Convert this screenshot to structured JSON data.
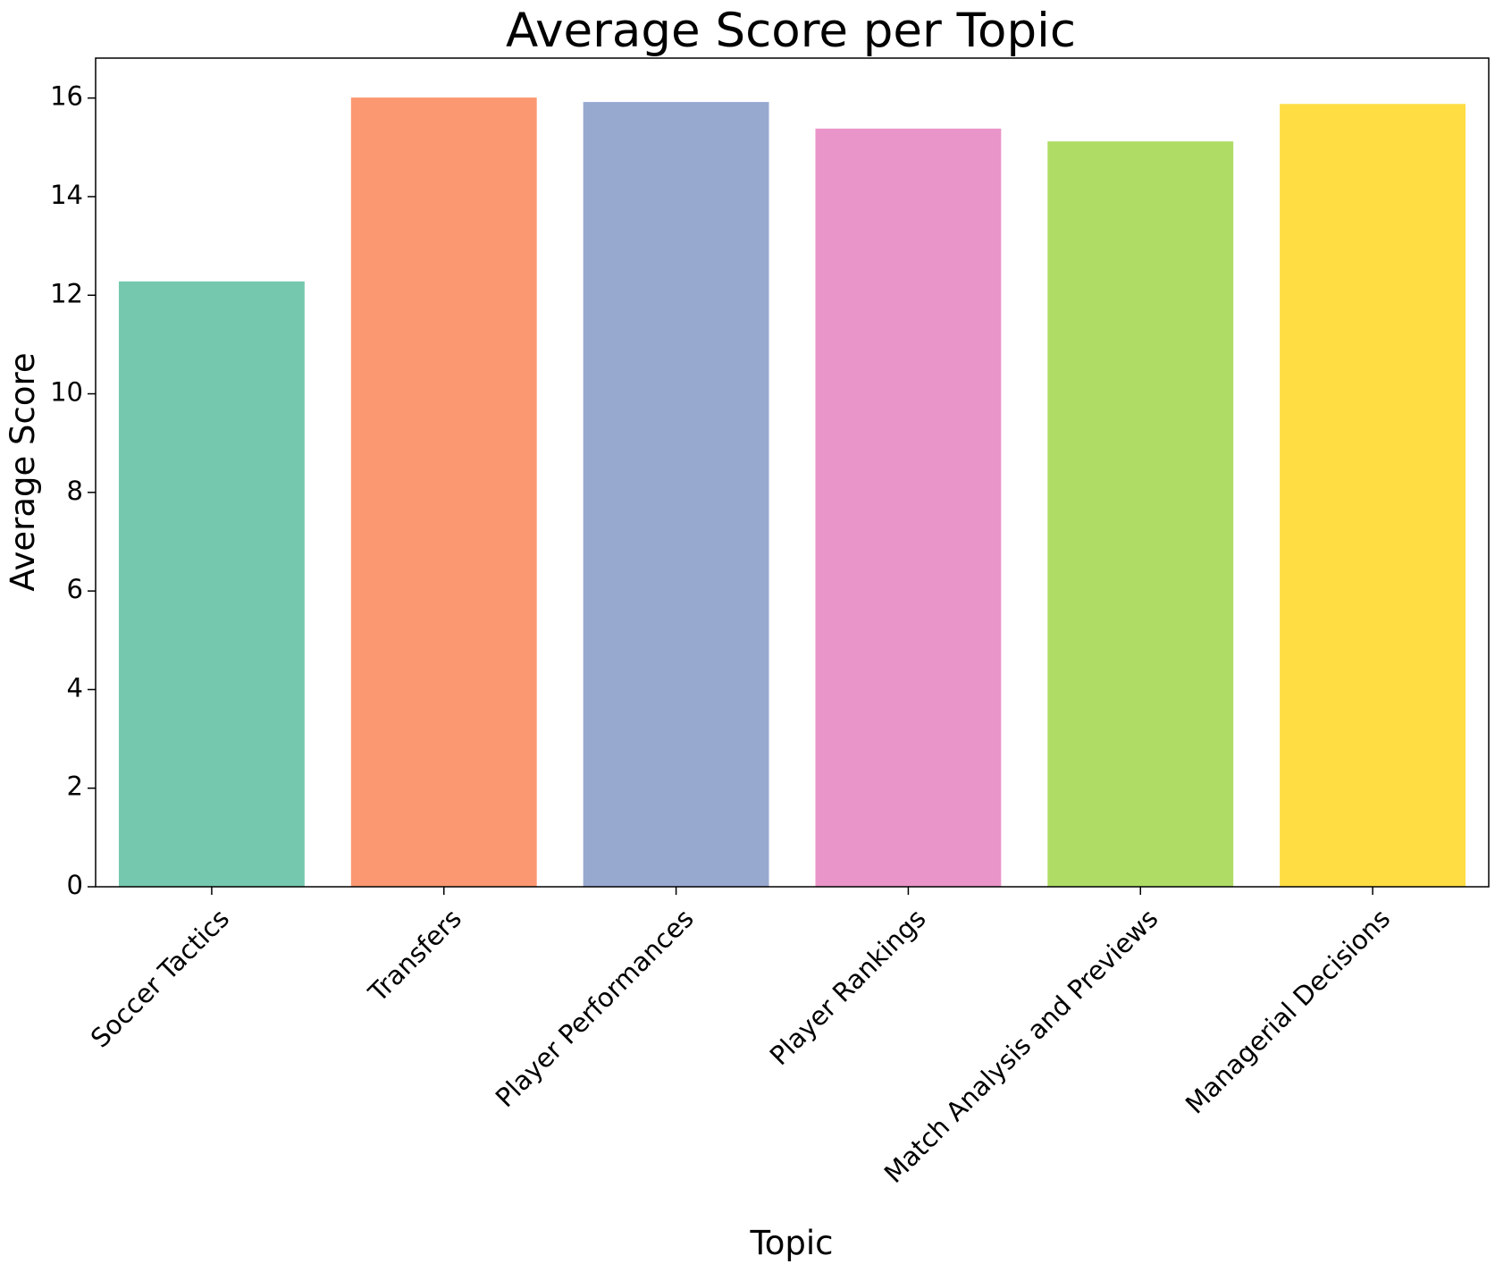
{
  "chart_data": {
    "type": "bar",
    "title": "Average Score per Topic",
    "xlabel": "Topic",
    "ylabel": "Average Score",
    "categories": [
      "Soccer Tactics",
      "Transfers",
      "Player Performances",
      "Player Rankings",
      "Match Analysis and Previews",
      "Managerial Decisions"
    ],
    "values": [
      12.28,
      16.01,
      15.92,
      15.38,
      15.12,
      15.88
    ],
    "colors": [
      "#66c2a5",
      "#fc8d62",
      "#8da0cb",
      "#e78ac3",
      "#a6d854",
      "#ffd92f"
    ],
    "bar_alpha": 0.9,
    "ylim": [
      0,
      16.81
    ],
    "yticks": [
      0,
      2,
      4,
      6,
      8,
      10,
      12,
      14,
      16
    ],
    "grid": false,
    "legend": "none",
    "xtick_rotation": 45
  }
}
